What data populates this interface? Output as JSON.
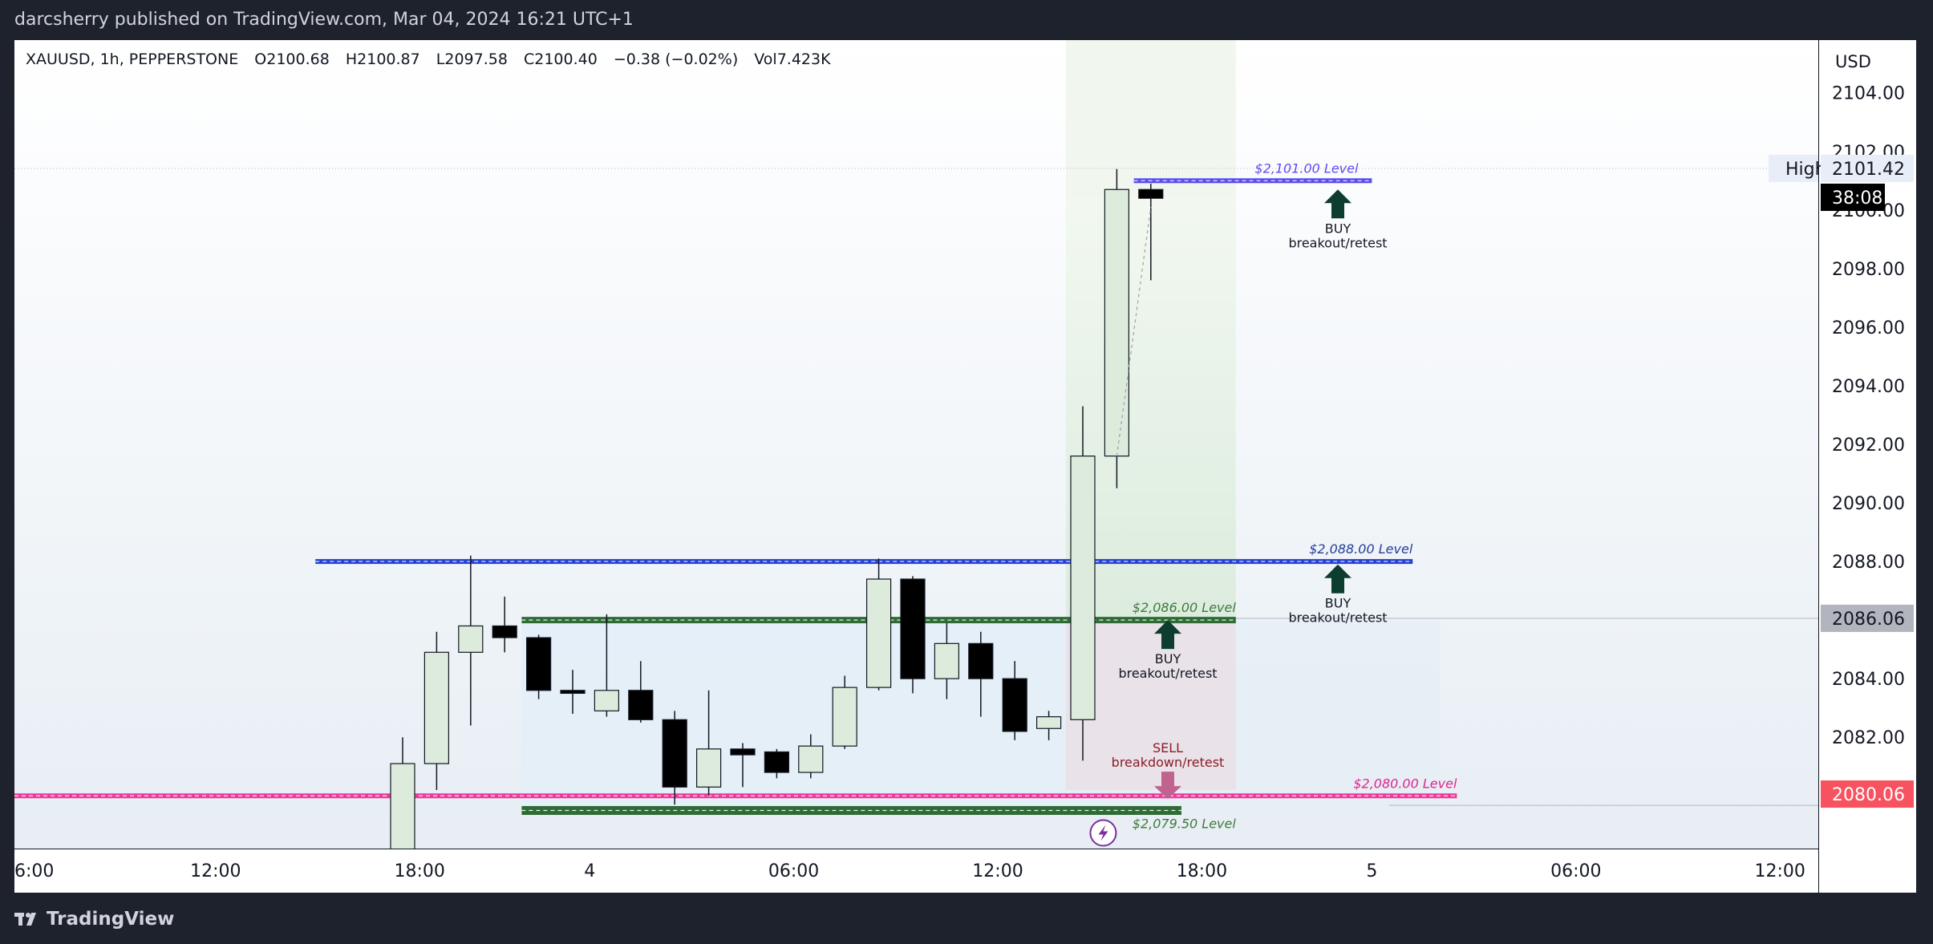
{
  "header": {
    "published": "darcsherry published on TradingView.com, Mar 04, 2024 16:21 UTC+1"
  },
  "footer": {
    "brand": "TradingView"
  },
  "symbol": {
    "line": "XAUUSD, 1h, PEPPERSTONE",
    "open": "O2100.68",
    "high": "H2100.87",
    "low": "L2097.58",
    "close": "C2100.40",
    "change": "−0.38 (−0.02%)",
    "volume": "Vol7.423K"
  },
  "price_scale": {
    "currency": "USD",
    "high_label": "High",
    "high_value": "2101.42",
    "countdown": "38:08",
    "level_mid": "2086.06",
    "level_low": "2080.06"
  },
  "annotations": {
    "lvl_2101": "$2,101.00 Level",
    "lvl_2088": "$2,088.00 Level",
    "lvl_2086": "$2,086.00 Level",
    "lvl_2080": "$2,080.00 Level",
    "lvl_2079": "$2,079.50 Level",
    "buy": "BUY",
    "breakout": "breakout/retest",
    "sell": "SELL",
    "breakdown": "breakdown/retest"
  },
  "colors": {
    "bull": "#dcebdc",
    "bear": "#000000",
    "blue_line": "#2442d6",
    "purple_line": "#5b4cf0",
    "green_zone": "#2e6b35",
    "pink_line": "#f0399a",
    "buy_arrow": "#0d3d2e",
    "sell_arrow": "#c2628f"
  },
  "chart_data": {
    "type": "candlestick",
    "symbol": "XAUUSD",
    "interval": "1h",
    "ylim": [
      2078.2,
      2105.8
    ],
    "y_ticks": [
      2082,
      2084,
      2086,
      2088,
      2090,
      2092,
      2094,
      2096,
      2098,
      2100,
      2102,
      2104
    ],
    "x_ticks": [
      {
        "label": "6:00",
        "bar": -11.5
      },
      {
        "label": "12:00",
        "bar": -5.5
      },
      {
        "label": "18:00",
        "bar": 0.5
      },
      {
        "label": "4",
        "bar": 5.5
      },
      {
        "label": "06:00",
        "bar": 11.5
      },
      {
        "label": "12:00",
        "bar": 17.5
      },
      {
        "label": "18:00",
        "bar": 23.5
      },
      {
        "label": "5",
        "bar": 28.5
      },
      {
        "label": "06:00",
        "bar": 34.5
      },
      {
        "label": "12:00",
        "bar": 40.5
      }
    ],
    "candles": [
      {
        "o": 2078.0,
        "h": 2082.0,
        "l": 2078.0,
        "c": 2081.1
      },
      {
        "o": 2081.1,
        "h": 2085.6,
        "l": 2080.2,
        "c": 2084.9
      },
      {
        "o": 2084.9,
        "h": 2088.2,
        "l": 2082.4,
        "c": 2085.8
      },
      {
        "o": 2085.8,
        "h": 2086.8,
        "l": 2084.9,
        "c": 2085.4
      },
      {
        "o": 2085.4,
        "h": 2085.5,
        "l": 2083.3,
        "c": 2083.6
      },
      {
        "o": 2083.6,
        "h": 2084.3,
        "l": 2082.8,
        "c": 2083.5
      },
      {
        "o": 2082.9,
        "h": 2086.2,
        "l": 2082.7,
        "c": 2083.6
      },
      {
        "o": 2083.6,
        "h": 2084.6,
        "l": 2082.5,
        "c": 2082.6
      },
      {
        "o": 2082.6,
        "h": 2082.9,
        "l": 2079.7,
        "c": 2080.3
      },
      {
        "o": 2080.3,
        "h": 2083.6,
        "l": 2080.0,
        "c": 2081.6
      },
      {
        "o": 2081.6,
        "h": 2081.8,
        "l": 2080.3,
        "c": 2081.4
      },
      {
        "o": 2081.5,
        "h": 2081.6,
        "l": 2080.6,
        "c": 2080.8
      },
      {
        "o": 2080.8,
        "h": 2082.1,
        "l": 2080.6,
        "c": 2081.7
      },
      {
        "o": 2081.7,
        "h": 2084.1,
        "l": 2081.6,
        "c": 2083.7
      },
      {
        "o": 2083.7,
        "h": 2088.1,
        "l": 2083.6,
        "c": 2087.4
      },
      {
        "o": 2087.4,
        "h": 2087.5,
        "l": 2083.5,
        "c": 2084.0
      },
      {
        "o": 2084.0,
        "h": 2085.9,
        "l": 2083.3,
        "c": 2085.2
      },
      {
        "o": 2085.2,
        "h": 2085.6,
        "l": 2082.7,
        "c": 2084.0
      },
      {
        "o": 2084.0,
        "h": 2084.6,
        "l": 2081.9,
        "c": 2082.2
      },
      {
        "o": 2082.3,
        "h": 2082.9,
        "l": 2081.9,
        "c": 2082.7
      },
      {
        "o": 2082.6,
        "h": 2093.3,
        "l": 2081.2,
        "c": 2091.6
      },
      {
        "o": 2091.6,
        "h": 2101.4,
        "l": 2090.5,
        "c": 2100.7
      },
      {
        "o": 2100.7,
        "h": 2100.9,
        "l": 2097.6,
        "c": 2100.4
      }
    ],
    "levels": [
      {
        "price": 2101.0,
        "label": "$2,101.00 Level"
      },
      {
        "price": 2088.0,
        "label": "$2,088.00 Level"
      },
      {
        "price": 2086.0,
        "label": "$2,086.00 Level"
      },
      {
        "price": 2080.0,
        "label": "$2,080.00 Level"
      },
      {
        "price": 2079.5,
        "label": "$2,079.50 Level"
      }
    ]
  }
}
